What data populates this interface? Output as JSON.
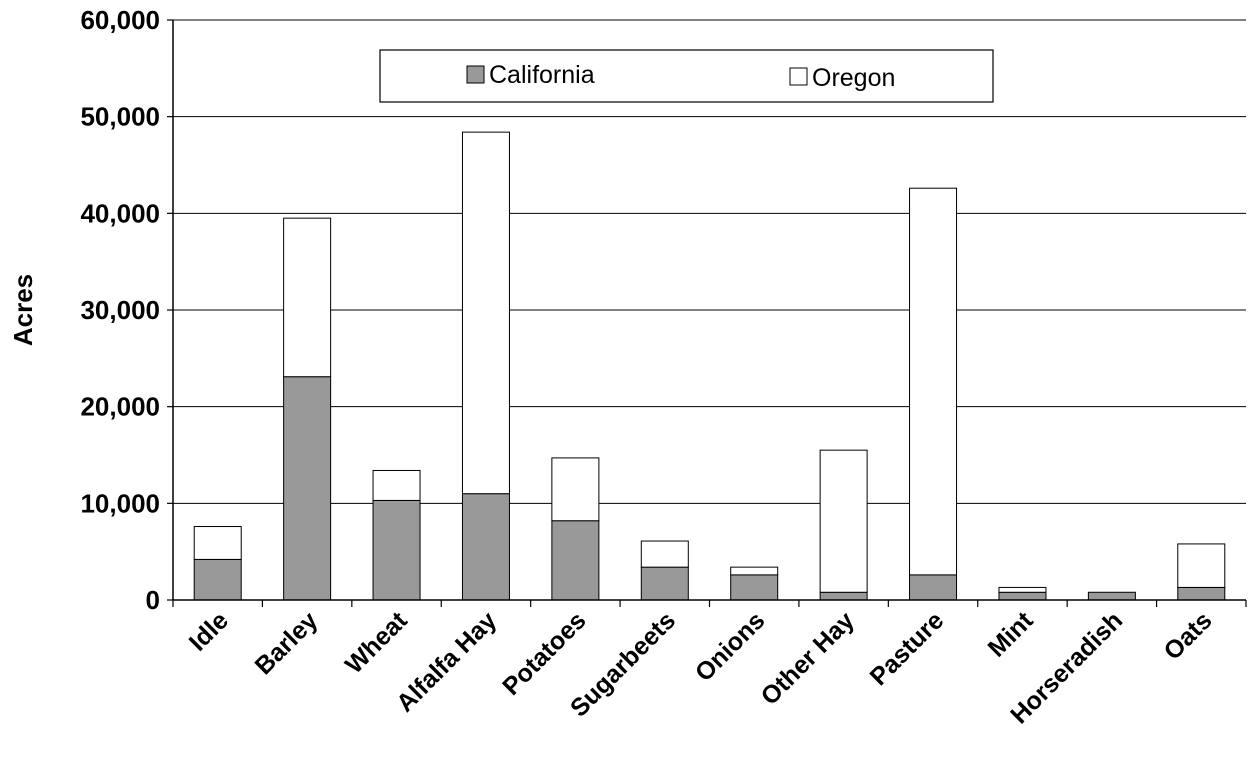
{
  "chart_data": {
    "type": "bar",
    "stacked": true,
    "title": "",
    "xlabel": "",
    "ylabel": "Acres",
    "ylim": [
      0,
      60000
    ],
    "yticks": [
      0,
      10000,
      20000,
      30000,
      40000,
      50000,
      60000
    ],
    "ytick_labels": [
      "0",
      "10,000",
      "20,000",
      "30,000",
      "40,000",
      "50,000",
      "60,000"
    ],
    "grid": true,
    "legend_position": "top-center",
    "categories": [
      "Idle",
      "Barley",
      "Wheat",
      "Alfalfa Hay",
      "Potatoes",
      "Sugarbeets",
      "Onions",
      "Other Hay",
      "Pasture",
      "Mint",
      "Horseradish",
      "Oats"
    ],
    "series": [
      {
        "name": "California",
        "color": "#999999",
        "values": [
          4200,
          23100,
          10300,
          11000,
          8200,
          3400,
          2600,
          800,
          2600,
          800,
          800,
          1300
        ]
      },
      {
        "name": "Oregon",
        "color": "#ffffff",
        "values": [
          3400,
          16400,
          3100,
          37400,
          6500,
          2700,
          800,
          14700,
          40000,
          500,
          0,
          4500
        ]
      }
    ]
  }
}
